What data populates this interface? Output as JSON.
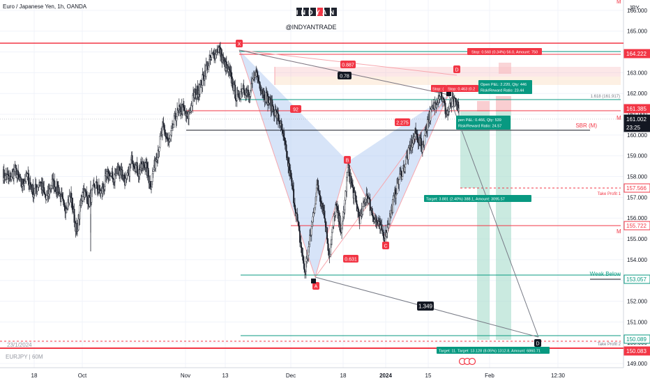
{
  "symbol_title": "Euro / Japanese Yen, 1h, OANDA",
  "watermark_brand": "INDYAN",
  "watermark_handle": "@INDYANTRADE",
  "watermark_date": "23/1/2024",
  "watermark_symbol": "EURJPY | 60M",
  "currency_label": "JPY",
  "top_marker": "M",
  "chart_data": {
    "type": "line",
    "title": "Euro / Japanese Yen, 1h, OANDA",
    "ylim": [
      148.8,
      166.5
    ],
    "x_tick_labels": [
      "18",
      "Oct",
      "Nov",
      "13",
      "Dec",
      "18",
      "2024",
      "15",
      "Feb",
      "12:30"
    ],
    "y_tick_labels": [
      "149.000",
      "150.000",
      "151.000",
      "152.000",
      "153.000",
      "154.000",
      "155.000",
      "156.000",
      "157.000",
      "158.000",
      "159.000",
      "160.000",
      "161.000",
      "162.000",
      "163.000",
      "164.000",
      "165.000",
      "166.000"
    ],
    "series": [
      {
        "values": [
          158.1,
          157.9,
          158.3,
          157.6,
          158.0,
          157.2,
          157.8,
          156.9,
          157.7,
          157.4,
          156.4,
          157.1,
          155.3,
          157.4,
          156.8,
          157.6,
          157.2,
          158.1,
          157.9,
          158.4,
          157.7,
          158.9,
          158.2,
          158.7,
          157.6,
          159.1,
          160.3,
          159.6,
          160.9,
          161.3,
          160.8,
          161.9,
          162.3,
          163.2,
          163.8,
          164.2,
          163.4,
          162.8,
          161.7,
          162.4,
          161.8,
          163.1,
          162.2,
          161.7,
          161.2,
          160.6,
          159.1,
          157.4,
          155.4,
          153.4,
          155.3,
          157.6,
          156.5,
          154.2,
          156.6,
          155.3,
          158.4,
          157.1,
          155.9,
          157.2,
          156.2,
          155.6,
          155.1,
          156.3,
          157.6,
          158.4,
          159.3,
          160.1,
          159.4,
          160.8,
          161.4,
          162.1,
          161.0,
          161.6,
          161.3
        ]
      }
    ]
  },
  "price_labels": [
    {
      "text": "164.222",
      "color": "#f23645"
    },
    {
      "text": "161.385",
      "color": "#f23645"
    },
    {
      "text": "161.002",
      "color": "#ffffff"
    },
    {
      "text": "23:25",
      "color": "#ffffff"
    },
    {
      "text": "157.566",
      "color": "#f23645"
    },
    {
      "text": "155.722",
      "color": "#f23645"
    },
    {
      "text": "153.057",
      "color": "#089981"
    },
    {
      "text": "150.089",
      "color": "#089981"
    },
    {
      "text": "150.083",
      "color": "#f23645"
    }
  ],
  "line_labels": {
    "sbr": "SBR (M)",
    "take_profit_1": "Take Profit 1",
    "weak_below": "Weak Below",
    "take_profit_2": "Take Profit 2",
    "fib": "1.618 (161.917)",
    "m_upper": "M",
    "m_lower": "M"
  },
  "pattern_points": {
    "x": "X",
    "a": "A",
    "b": "B",
    "c": "C",
    "d_upper": "D",
    "d_lower": "D"
  },
  "ratio_labels": {
    "r0887": "0.887",
    "r078": "0.78",
    "r092": "92",
    "r2275": "2.275",
    "r0631": "0.631",
    "r1349": "1.349"
  },
  "trade_labels": {
    "stop_top": "Stop: 0.560 (0.34%) 56.0, Amount: 750",
    "stop_small_1": "Stop: (",
    "stop_small_2": "Stop: 0.463 (0.2",
    "open_pl_1_line1": "Open P&L: 2.220, Qty: 446",
    "open_pl_1_line2": "Risk/Reward Ratio: 23.44",
    "open_pl_2_line1": "pen P&L: 0.466, Qty: 539",
    "open_pl_2_line2": "Risk/Reward Ratio: 24.57",
    "target_1": "Target: 3.881 (2.40%) 388.1, Amount: 3095.57",
    "target_2": "Target: 11.  Target: 13.128 (8.05%) 1312.8, Amount: 6860.71"
  },
  "colors": {
    "bull": "#089981",
    "bear": "#f23645",
    "candle": "#1e222d",
    "pattern_fill": "#b7cdf3",
    "accent_blue": "#2962ff"
  }
}
